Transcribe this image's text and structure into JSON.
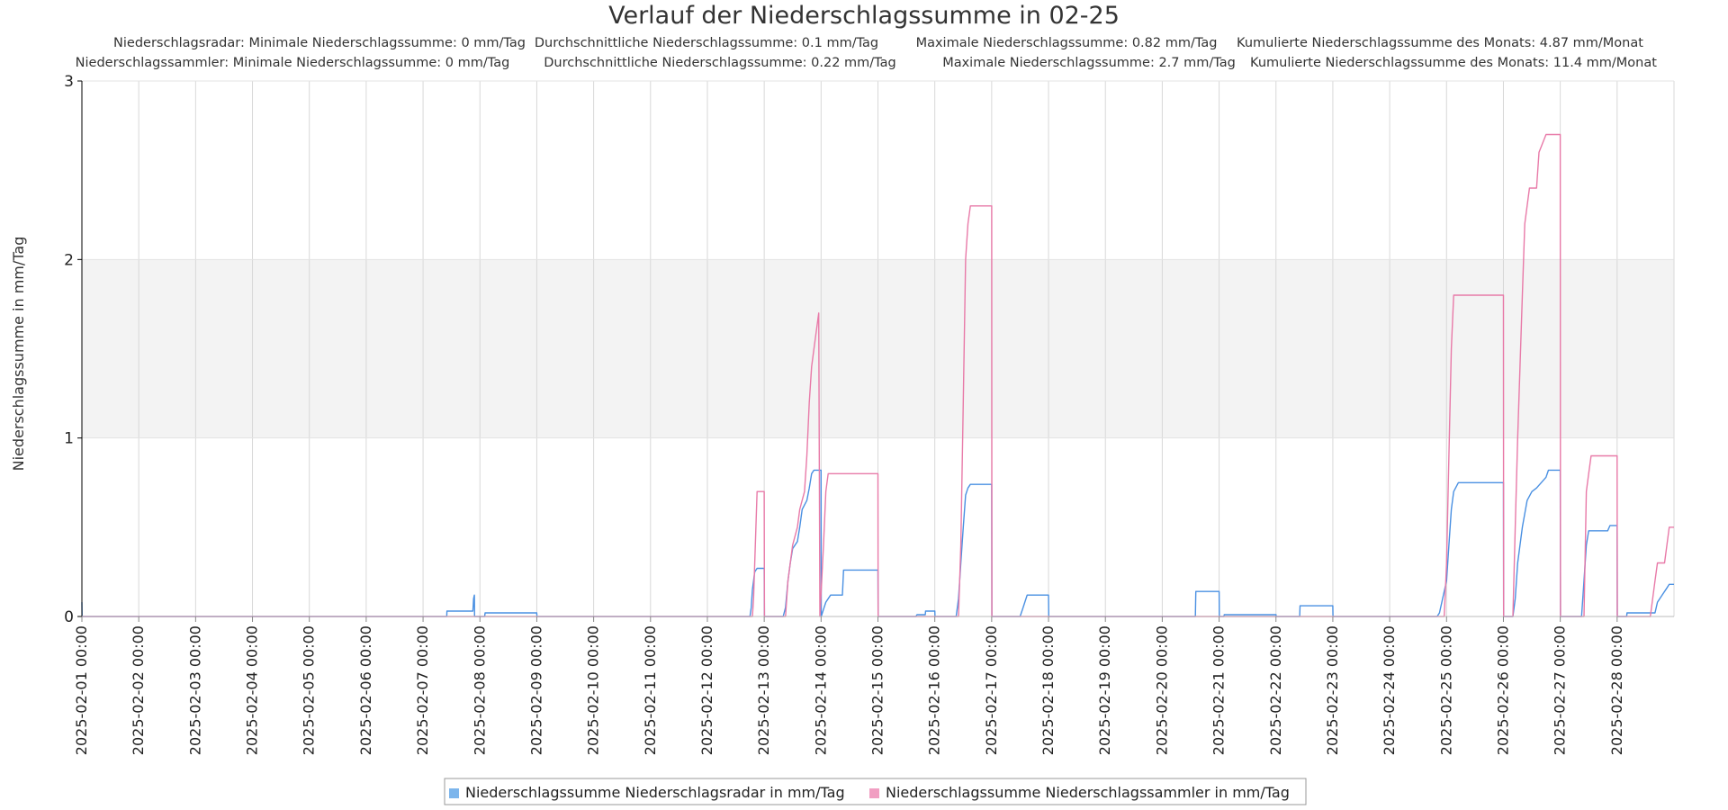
{
  "chart_data": {
    "type": "line",
    "title": "Verlauf der Niederschlagssumme in 02-25",
    "stats": [
      [
        "Niederschlagsradar: Minimale Niederschlagssumme: 0 mm/Tag",
        "Durchschnittliche Niederschlagssumme: 0.1 mm/Tag",
        "Maximale Niederschlagssumme: 0.82 mm/Tag",
        "Kumulierte Niederschlagssumme des Monats: 4.87 mm/Monat"
      ],
      [
        "Niederschlagssammler: Minimale Niederschlagssumme: 0 mm/Tag",
        "Durchschnittliche Niederschlagssumme: 0.22 mm/Tag",
        "Maximale Niederschlagssumme: 2.7 mm/Tag",
        "Kumulierte Niederschlagssumme des Monats: 11.4 mm/Monat"
      ]
    ],
    "ylabel": "Niederschlagssumme in mm/Tag",
    "xlabel": "",
    "ylim": [
      0,
      3
    ],
    "yticks": [
      "0",
      "1",
      "2",
      "3"
    ],
    "x_start": "2025-02-01 00:00",
    "x_end": "2025-03-01 00:00",
    "xticks": [
      "2025-02-01 00:00",
      "2025-02-02 00:00",
      "2025-02-03 00:00",
      "2025-02-04 00:00",
      "2025-02-05 00:00",
      "2025-02-06 00:00",
      "2025-02-07 00:00",
      "2025-02-08 00:00",
      "2025-02-09 00:00",
      "2025-02-10 00:00",
      "2025-02-11 00:00",
      "2025-02-12 00:00",
      "2025-02-13 00:00",
      "2025-02-14 00:00",
      "2025-02-15 00:00",
      "2025-02-16 00:00",
      "2025-02-17 00:00",
      "2025-02-18 00:00",
      "2025-02-19 00:00",
      "2025-02-20 00:00",
      "2025-02-21 00:00",
      "2025-02-22 00:00",
      "2025-02-23 00:00",
      "2025-02-24 00:00",
      "2025-02-25 00:00",
      "2025-02-26 00:00",
      "2025-02-27 00:00",
      "2025-02-28 00:00"
    ],
    "band": {
      "from": 1,
      "to": 2,
      "color": "#f3f3f3"
    },
    "grid": true,
    "legend_position": "bottom",
    "series": [
      {
        "name": "Niederschlagssumme Niederschlagsradar in mm/Tag",
        "color": "#7cb5ec",
        "stroke": "#4a90e2",
        "points": [
          [
            "2025-02-01 00:00",
            0.08
          ],
          [
            "2025-02-01 00:05",
            0
          ],
          [
            "2025-02-07 10:00",
            0
          ],
          [
            "2025-02-07 10:05",
            0.03
          ],
          [
            "2025-02-07 21:00",
            0.03
          ],
          [
            "2025-02-07 21:10",
            0.06
          ],
          [
            "2025-02-07 21:20",
            0.1
          ],
          [
            "2025-02-07 21:40",
            0.12
          ],
          [
            "2025-02-07 21:45",
            0
          ],
          [
            "2025-02-08 00:00",
            0
          ],
          [
            "2025-02-08 02:00",
            0
          ],
          [
            "2025-02-08 02:10",
            0.02
          ],
          [
            "2025-02-09 00:00",
            0.02
          ],
          [
            "2025-02-09 00:05",
            0
          ],
          [
            "2025-02-12 18:00",
            0
          ],
          [
            "2025-02-12 18:30",
            0.05
          ],
          [
            "2025-02-12 19:00",
            0.15
          ],
          [
            "2025-02-12 19:30",
            0.2
          ],
          [
            "2025-02-12 20:00",
            0.25
          ],
          [
            "2025-02-12 21:00",
            0.27
          ],
          [
            "2025-02-13 00:00",
            0.27
          ],
          [
            "2025-02-13 00:05",
            0
          ],
          [
            "2025-02-13 08:00",
            0
          ],
          [
            "2025-02-13 09:00",
            0.05
          ],
          [
            "2025-02-13 10:00",
            0.2
          ],
          [
            "2025-02-13 11:00",
            0.3
          ],
          [
            "2025-02-13 12:00",
            0.38
          ],
          [
            "2025-02-13 14:00",
            0.42
          ],
          [
            "2025-02-13 15:00",
            0.5
          ],
          [
            "2025-02-13 16:00",
            0.6
          ],
          [
            "2025-02-13 18:00",
            0.65
          ],
          [
            "2025-02-13 19:00",
            0.72
          ],
          [
            "2025-02-13 20:00",
            0.8
          ],
          [
            "2025-02-13 21:00",
            0.82
          ],
          [
            "2025-02-14 00:00",
            0.82
          ],
          [
            "2025-02-14 00:05",
            0
          ],
          [
            "2025-02-14 01:00",
            0.04
          ],
          [
            "2025-02-14 02:00",
            0.08
          ],
          [
            "2025-02-14 04:00",
            0.12
          ],
          [
            "2025-02-14 09:00",
            0.12
          ],
          [
            "2025-02-14 09:30",
            0.26
          ],
          [
            "2025-02-15 00:00",
            0.26
          ],
          [
            "2025-02-15 00:05",
            0
          ],
          [
            "2025-02-15 16:00",
            0
          ],
          [
            "2025-02-15 16:30",
            0.01
          ],
          [
            "2025-02-15 20:00",
            0.01
          ],
          [
            "2025-02-15 20:05",
            0.03
          ],
          [
            "2025-02-16 00:00",
            0.03
          ],
          [
            "2025-02-16 00:05",
            0
          ],
          [
            "2025-02-16 09:00",
            0
          ],
          [
            "2025-02-16 10:00",
            0.1
          ],
          [
            "2025-02-16 11:00",
            0.3
          ],
          [
            "2025-02-16 12:00",
            0.5
          ],
          [
            "2025-02-16 13:00",
            0.68
          ],
          [
            "2025-02-16 14:00",
            0.72
          ],
          [
            "2025-02-16 15:00",
            0.74
          ],
          [
            "2025-02-17 00:00",
            0.74
          ],
          [
            "2025-02-17 00:05",
            0
          ],
          [
            "2025-02-17 12:00",
            0
          ],
          [
            "2025-02-17 13:00",
            0.04
          ],
          [
            "2025-02-17 14:00",
            0.08
          ],
          [
            "2025-02-17 15:00",
            0.12
          ],
          [
            "2025-02-18 00:00",
            0.12
          ],
          [
            "2025-02-18 00:05",
            0
          ],
          [
            "2025-02-20 14:00",
            0
          ],
          [
            "2025-02-20 14:10",
            0.14
          ],
          [
            "2025-02-21 00:00",
            0.14
          ],
          [
            "2025-02-21 00:05",
            0
          ],
          [
            "2025-02-21 02:00",
            0
          ],
          [
            "2025-02-21 02:10",
            0.01
          ],
          [
            "2025-02-22 00:00",
            0.01
          ],
          [
            "2025-02-22 00:05",
            0
          ],
          [
            "2025-02-22 10:00",
            0
          ],
          [
            "2025-02-22 10:10",
            0.06
          ],
          [
            "2025-02-23 00:00",
            0.06
          ],
          [
            "2025-02-23 00:05",
            0
          ],
          [
            "2025-02-24 20:00",
            0
          ],
          [
            "2025-02-24 21:00",
            0.02
          ],
          [
            "2025-02-25 00:00",
            0.2
          ],
          [
            "2025-02-25 01:00",
            0.4
          ],
          [
            "2025-02-25 02:00",
            0.6
          ],
          [
            "2025-02-25 03:00",
            0.7
          ],
          [
            "2025-02-25 05:00",
            0.75
          ],
          [
            "2025-02-26 00:00",
            0.75
          ],
          [
            "2025-02-26 00:05",
            0
          ],
          [
            "2025-02-26 04:00",
            0
          ],
          [
            "2025-02-26 05:00",
            0.1
          ],
          [
            "2025-02-26 06:00",
            0.3
          ],
          [
            "2025-02-26 08:00",
            0.5
          ],
          [
            "2025-02-26 10:00",
            0.65
          ],
          [
            "2025-02-26 12:00",
            0.7
          ],
          [
            "2025-02-26 14:00",
            0.72
          ],
          [
            "2025-02-26 18:00",
            0.78
          ],
          [
            "2025-02-26 19:00",
            0.82
          ],
          [
            "2025-02-27 00:00",
            0.82
          ],
          [
            "2025-02-27 00:05",
            0
          ],
          [
            "2025-02-27 09:00",
            0
          ],
          [
            "2025-02-27 10:00",
            0.2
          ],
          [
            "2025-02-27 11:00",
            0.4
          ],
          [
            "2025-02-27 12:00",
            0.48
          ],
          [
            "2025-02-27 20:00",
            0.48
          ],
          [
            "2025-02-27 21:00",
            0.51
          ],
          [
            "2025-02-28 00:00",
            0.51
          ],
          [
            "2025-02-28 00:05",
            0
          ],
          [
            "2025-02-28 04:00",
            0
          ],
          [
            "2025-02-28 04:10",
            0.02
          ],
          [
            "2025-02-28 16:00",
            0.02
          ],
          [
            "2025-02-28 17:00",
            0.08
          ],
          [
            "2025-02-28 19:00",
            0.12
          ],
          [
            "2025-02-28 21:00",
            0.16
          ],
          [
            "2025-02-28 22:00",
            0.18
          ],
          [
            "2025-03-01 00:00",
            0.18
          ]
        ]
      },
      {
        "name": "Niederschlagssumme Niederschlagssammler in mm/Tag",
        "color": "#f19ec2",
        "stroke": "#e87aa8",
        "points": [
          [
            "2025-02-01 00:00",
            0
          ],
          [
            "2025-02-12 19:00",
            0
          ],
          [
            "2025-02-12 19:30",
            0.1
          ],
          [
            "2025-02-12 20:00",
            0.3
          ],
          [
            "2025-02-12 20:30",
            0.5
          ],
          [
            "2025-02-12 21:00",
            0.7
          ],
          [
            "2025-02-13 00:00",
            0.7
          ],
          [
            "2025-02-13 00:05",
            0
          ],
          [
            "2025-02-13 09:00",
            0
          ],
          [
            "2025-02-13 10:00",
            0.2
          ],
          [
            "2025-02-13 11:00",
            0.3
          ],
          [
            "2025-02-13 12:00",
            0.4
          ],
          [
            "2025-02-13 14:00",
            0.5
          ],
          [
            "2025-02-13 15:00",
            0.6
          ],
          [
            "2025-02-13 17:00",
            0.7
          ],
          [
            "2025-02-13 18:00",
            0.9
          ],
          [
            "2025-02-13 19:00",
            1.2
          ],
          [
            "2025-02-13 20:00",
            1.4
          ],
          [
            "2025-02-13 21:00",
            1.5
          ],
          [
            "2025-02-13 23:00",
            1.7
          ],
          [
            "2025-02-13 23:30",
            0
          ],
          [
            "2025-02-14 01:00",
            0.4
          ],
          [
            "2025-02-14 02:00",
            0.7
          ],
          [
            "2025-02-14 03:00",
            0.8
          ],
          [
            "2025-02-15 00:00",
            0.8
          ],
          [
            "2025-02-15 00:05",
            0
          ],
          [
            "2025-02-16 10:00",
            0
          ],
          [
            "2025-02-16 11:00",
            0.4
          ],
          [
            "2025-02-16 12:00",
            1.2
          ],
          [
            "2025-02-16 13:00",
            2.0
          ],
          [
            "2025-02-16 14:00",
            2.2
          ],
          [
            "2025-02-16 15:00",
            2.3
          ],
          [
            "2025-02-17 00:00",
            2.3
          ],
          [
            "2025-02-17 00:05",
            0
          ],
          [
            "2025-02-24 23:00",
            0
          ],
          [
            "2025-02-25 00:00",
            0.3
          ],
          [
            "2025-02-25 01:00",
            0.9
          ],
          [
            "2025-02-25 02:00",
            1.5
          ],
          [
            "2025-02-25 03:00",
            1.8
          ],
          [
            "2025-02-26 00:00",
            1.8
          ],
          [
            "2025-02-26 00:05",
            0
          ],
          [
            "2025-02-26 04:00",
            0
          ],
          [
            "2025-02-26 05:00",
            0.5
          ],
          [
            "2025-02-26 06:00",
            1.0
          ],
          [
            "2025-02-26 07:00",
            1.4
          ],
          [
            "2025-02-26 08:00",
            1.8
          ],
          [
            "2025-02-26 09:00",
            2.2
          ],
          [
            "2025-02-26 10:00",
            2.3
          ],
          [
            "2025-02-26 11:00",
            2.4
          ],
          [
            "2025-02-26 14:00",
            2.4
          ],
          [
            "2025-02-26 15:00",
            2.6
          ],
          [
            "2025-02-26 18:00",
            2.7
          ],
          [
            "2025-02-27 00:00",
            2.7
          ],
          [
            "2025-02-27 00:05",
            0
          ],
          [
            "2025-02-27 10:00",
            0
          ],
          [
            "2025-02-27 11:00",
            0.7
          ],
          [
            "2025-02-27 12:00",
            0.8
          ],
          [
            "2025-02-27 13:00",
            0.9
          ],
          [
            "2025-02-28 00:00",
            0.9
          ],
          [
            "2025-02-28 00:05",
            0
          ],
          [
            "2025-02-28 14:00",
            0
          ],
          [
            "2025-02-28 15:00",
            0.1
          ],
          [
            "2025-02-28 16:00",
            0.2
          ],
          [
            "2025-02-28 17:00",
            0.3
          ],
          [
            "2025-02-28 20:00",
            0.3
          ],
          [
            "2025-02-28 21:00",
            0.4
          ],
          [
            "2025-02-28 22:00",
            0.5
          ],
          [
            "2025-03-01 00:00",
            0.5
          ]
        ]
      }
    ]
  }
}
